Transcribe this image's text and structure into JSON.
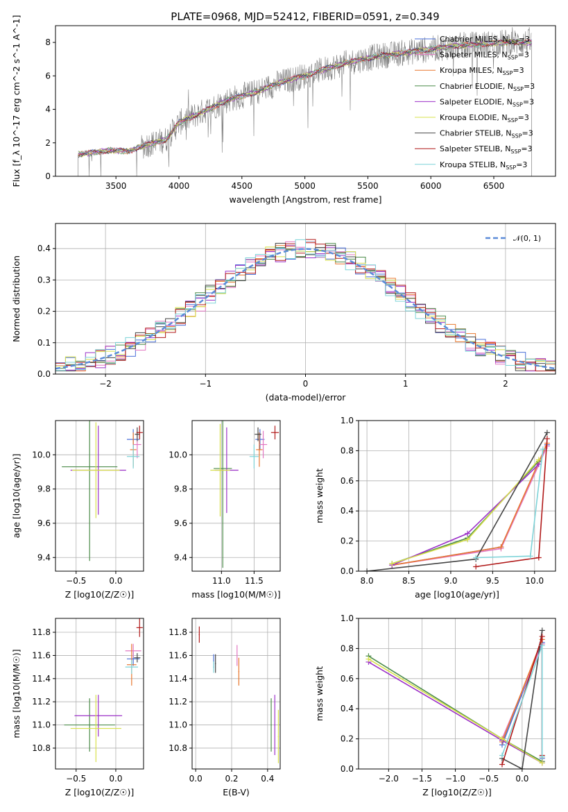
{
  "figure_title": "PLATE=0968, MJD=52412, FIBERID=0591, z=0.349",
  "models": [
    {
      "name": "Chabrier MILES, N",
      "sub": "SSP",
      "suffix": "=3",
      "color": "#4a6fd8"
    },
    {
      "name": "Salpeter MILES, N",
      "sub": "SSP",
      "suffix": "=3",
      "color": "#e377c2"
    },
    {
      "name": "Kroupa MILES, N",
      "sub": "SSP",
      "suffix": "=3",
      "color": "#e8772e"
    },
    {
      "name": "Chabrier ELODIE, N",
      "sub": "SSP",
      "suffix": "=3",
      "color": "#4c8c4a"
    },
    {
      "name": "Salpeter ELODIE, N",
      "sub": "SSP",
      "suffix": "=3",
      "color": "#9b30c8"
    },
    {
      "name": "Kroupa ELODIE, N",
      "sub": "SSP",
      "suffix": "=3",
      "color": "#d7e04a"
    },
    {
      "name": "Chabrier STELIB, N",
      "sub": "SSP",
      "suffix": "=3",
      "color": "#444444"
    },
    {
      "name": "Salpeter STELIB, N",
      "sub": "SSP",
      "suffix": "=3",
      "color": "#b01818"
    },
    {
      "name": "Kroupa STELIB, N",
      "sub": "SSP",
      "suffix": "=3",
      "color": "#7dd3d8"
    }
  ],
  "chart_data": [
    {
      "id": "spectrum",
      "type": "line",
      "xlabel": "wavelength [Angstrom, rest frame]",
      "ylabel": "Flux [f_λ 10^-17 erg cm^-2 s^-1 A^-1]",
      "xlim": [
        3020,
        6990
      ],
      "ylim": [
        0,
        9
      ],
      "xticks": [
        3500,
        4000,
        4500,
        5000,
        5500,
        6000,
        6500
      ],
      "yticks": [
        0,
        2,
        4,
        6,
        8
      ],
      "data_color": "#808080",
      "data_range": [
        3200,
        6800
      ],
      "continuum": [
        [
          3200,
          1.3
        ],
        [
          3450,
          1.55
        ],
        [
          3600,
          1.5
        ],
        [
          3750,
          1.9
        ],
        [
          3900,
          2.2
        ],
        [
          4000,
          3.2
        ],
        [
          4200,
          3.9
        ],
        [
          4400,
          4.6
        ],
        [
          4600,
          5.0
        ],
        [
          4800,
          5.6
        ],
        [
          5000,
          6.0
        ],
        [
          5200,
          6.5
        ],
        [
          5400,
          6.9
        ],
        [
          5600,
          7.2
        ],
        [
          5800,
          7.4
        ],
        [
          6000,
          7.6
        ],
        [
          6200,
          7.8
        ],
        [
          6400,
          7.9
        ],
        [
          6600,
          8.0
        ],
        [
          6800,
          8.0
        ]
      ]
    },
    {
      "id": "residuals",
      "type": "line",
      "xlabel": "(data-model)/error",
      "ylabel": "Normed distribution",
      "xlim": [
        -2.5,
        2.5
      ],
      "ylim": [
        0,
        0.48
      ],
      "xticks": [
        -2,
        -1,
        0,
        1,
        2
      ],
      "yticks": [
        0.0,
        0.1,
        0.2,
        0.3,
        0.4
      ],
      "legend": "𝒩(0, 1)",
      "gaussian_color": "#5b8bd8",
      "bin_width": 0.1
    },
    {
      "id": "age_vs_Z",
      "type": "scatter",
      "xlabel": "Z [log10(Z/Z☉)]",
      "ylabel": "age [log10(age/yr)]",
      "xlim": [
        -0.76,
        0.35
      ],
      "ylim": [
        9.32,
        10.2
      ],
      "xticks": [
        -0.5,
        0.0
      ],
      "yticks": [
        9.4,
        9.6,
        9.8,
        10.0
      ],
      "points": [
        {
          "m": 0,
          "x": 0.22,
          "xerr": 0.08,
          "y": 10.09,
          "yerr": 0.06
        },
        {
          "m": 1,
          "x": 0.27,
          "xerr": 0.05,
          "y": 10.06,
          "yerr": 0.08
        },
        {
          "m": 2,
          "x": 0.22,
          "xerr": 0.04,
          "y": 10.03,
          "yerr": 0.1
        },
        {
          "m": 3,
          "x": -0.33,
          "xerr": 0.35,
          "y": 9.93,
          "yerr": 0.55
        },
        {
          "m": 4,
          "x": -0.22,
          "xerr": 0.35,
          "y": 9.91,
          "yerr": 0.26
        },
        {
          "m": 5,
          "x": -0.25,
          "xerr": 0.3,
          "y": 9.91,
          "yerr": 0.28
        },
        {
          "m": 6,
          "x": 0.27,
          "xerr": 0.03,
          "y": 10.12,
          "yerr": 0.04
        },
        {
          "m": 7,
          "x": 0.3,
          "xerr": 0.04,
          "y": 10.13,
          "yerr": 0.04
        },
        {
          "m": 8,
          "x": 0.22,
          "xerr": 0.08,
          "y": 9.99,
          "yerr": 0.07
        }
      ]
    },
    {
      "id": "age_vs_mass",
      "type": "scatter",
      "xlabel": "mass [log10(M/M☉)]",
      "ylabel": "",
      "xlim": [
        10.55,
        11.9
      ],
      "ylim": [
        9.32,
        10.2
      ],
      "xticks": [
        11.0,
        11.5
      ],
      "yticks": [
        9.4,
        9.6,
        9.8,
        10.0
      ],
      "points": [
        {
          "m": 0,
          "x": 11.59,
          "xerr": 0.07,
          "y": 10.09,
          "yerr": 0.06
        },
        {
          "m": 1,
          "x": 11.64,
          "xerr": 0.06,
          "y": 10.06,
          "yerr": 0.08
        },
        {
          "m": 2,
          "x": 11.58,
          "xerr": 0.05,
          "y": 10.03,
          "yerr": 0.1
        },
        {
          "m": 3,
          "x": 11.02,
          "xerr": 0.14,
          "y": 9.92,
          "yerr": 0.58
        },
        {
          "m": 4,
          "x": 11.08,
          "xerr": 0.18,
          "y": 9.91,
          "yerr": 0.25
        },
        {
          "m": 5,
          "x": 10.98,
          "xerr": 0.15,
          "y": 9.91,
          "yerr": 0.27
        },
        {
          "m": 6,
          "x": 11.56,
          "xerr": 0.05,
          "y": 10.12,
          "yerr": 0.04
        },
        {
          "m": 7,
          "x": 11.82,
          "xerr": 0.06,
          "y": 10.13,
          "yerr": 0.04
        },
        {
          "m": 8,
          "x": 11.5,
          "xerr": 0.07,
          "y": 9.99,
          "yerr": 0.07
        }
      ]
    },
    {
      "id": "weight_vs_age",
      "type": "line",
      "xlabel": "age [log10(age/yr)]",
      "ylabel": "mass weight",
      "xlim": [
        7.9,
        10.25
      ],
      "ylim": [
        0,
        1
      ],
      "xticks": [
        8.0,
        8.5,
        9.0,
        9.5,
        10.0
      ],
      "yticks": [
        0.0,
        0.2,
        0.4,
        0.6,
        0.8,
        1.0
      ],
      "series": [
        {
          "m": 0,
          "x": [
            8.3,
            9.6,
            10.15
          ],
          "y": [
            0.04,
            0.16,
            0.84
          ]
        },
        {
          "m": 1,
          "x": [
            8.3,
            9.6,
            10.15
          ],
          "y": [
            0.04,
            0.15,
            0.83
          ]
        },
        {
          "m": 2,
          "x": [
            8.3,
            9.6,
            10.15
          ],
          "y": [
            0.04,
            0.16,
            0.85
          ]
        },
        {
          "m": 3,
          "x": [
            8.3,
            9.2,
            10.05
          ],
          "y": [
            0.05,
            0.22,
            0.73
          ]
        },
        {
          "m": 4,
          "x": [
            8.3,
            9.2,
            10.05
          ],
          "y": [
            0.04,
            0.25,
            0.71
          ]
        },
        {
          "m": 5,
          "x": [
            8.3,
            9.2,
            10.05
          ],
          "y": [
            0.05,
            0.21,
            0.74
          ]
        },
        {
          "m": 6,
          "x": [
            8.0,
            9.3,
            10.15
          ],
          "y": [
            0.0,
            0.08,
            0.92
          ]
        },
        {
          "m": 7,
          "x": [
            9.3,
            10.05,
            10.15
          ],
          "y": [
            0.03,
            0.09,
            0.88
          ]
        },
        {
          "m": 8,
          "x": [
            9.3,
            9.95,
            10.1
          ],
          "y": [
            0.09,
            0.1,
            0.81
          ]
        }
      ]
    },
    {
      "id": "mass_vs_Z",
      "type": "scatter",
      "xlabel": "Z [log10(Z/Z☉)]",
      "ylabel": "mass [log10(M/M☉)]",
      "xlim": [
        -0.76,
        0.35
      ],
      "ylim": [
        10.62,
        11.92
      ],
      "xticks": [
        -0.5,
        0.0
      ],
      "yticks": [
        10.8,
        11.0,
        11.2,
        11.4,
        11.6,
        11.8
      ],
      "points": [
        {
          "m": 0,
          "x": 0.22,
          "xerr": 0.08,
          "y": 11.57,
          "yerr": 0.06
        },
        {
          "m": 1,
          "x": 0.22,
          "xerr": 0.1,
          "y": 11.64,
          "yerr": 0.06
        },
        {
          "m": 2,
          "x": 0.2,
          "xerr": 0.06,
          "y": 11.52,
          "yerr": 0.18
        },
        {
          "m": 3,
          "x": -0.33,
          "xerr": 0.32,
          "y": 11.0,
          "yerr": 0.23
        },
        {
          "m": 4,
          "x": -0.22,
          "xerr": 0.3,
          "y": 11.08,
          "yerr": 0.18
        },
        {
          "m": 5,
          "x": -0.25,
          "xerr": 0.32,
          "y": 10.97,
          "yerr": 0.29
        },
        {
          "m": 6,
          "x": 0.27,
          "xerr": 0.04,
          "y": 11.58,
          "yerr": 0.04
        },
        {
          "m": 7,
          "x": 0.3,
          "xerr": 0.04,
          "y": 11.84,
          "yerr": 0.08
        },
        {
          "m": 8,
          "x": 0.2,
          "xerr": 0.08,
          "y": 11.5,
          "yerr": 0.06
        }
      ]
    },
    {
      "id": "mass_vs_EBV",
      "type": "scatter",
      "xlabel": "E(B-V)",
      "ylabel": "",
      "xlim": [
        -0.02,
        0.47
      ],
      "ylim": [
        10.62,
        11.92
      ],
      "xticks": [
        0.0,
        0.2,
        0.4
      ],
      "yticks": [
        10.8,
        11.0,
        11.2,
        11.4,
        11.6,
        11.8
      ],
      "points": [
        {
          "m": 0,
          "x": 0.1,
          "y": 11.55,
          "yerr": 0.06
        },
        {
          "m": 1,
          "x": 0.23,
          "y": 11.6,
          "yerr": 0.09
        },
        {
          "m": 2,
          "x": 0.24,
          "y": 11.46,
          "yerr": 0.12
        },
        {
          "m": 3,
          "x": 0.42,
          "y": 11.0,
          "yerr": 0.23
        },
        {
          "m": 4,
          "x": 0.44,
          "y": 11.0,
          "yerr": 0.26
        },
        {
          "m": 5,
          "x": 0.46,
          "y": 10.9,
          "yerr": 0.23
        },
        {
          "m": 6,
          "x": 0.11,
          "y": 11.53,
          "yerr": 0.08
        },
        {
          "m": 7,
          "x": 0.02,
          "y": 11.78,
          "yerr": 0.07
        },
        {
          "m": 8,
          "x": 0.1,
          "y": 11.5,
          "yerr": 0.05
        }
      ]
    },
    {
      "id": "weight_vs_Z",
      "type": "line",
      "xlabel": "Z [log10(Z/Z☉)]",
      "ylabel": "mass weight",
      "xlim": [
        -2.45,
        0.5
      ],
      "ylim": [
        0,
        1
      ],
      "xticks": [
        -2.0,
        -1.5,
        -1.0,
        -0.5,
        0.0
      ],
      "yticks": [
        0.0,
        0.2,
        0.4,
        0.6,
        0.8,
        1.0
      ],
      "series": [
        {
          "m": 0,
          "x": [
            -0.3,
            0.3,
            0.3
          ],
          "y": [
            0.16,
            0.84,
            0.07
          ]
        },
        {
          "m": 1,
          "x": [
            -0.3,
            0.3,
            0.3
          ],
          "y": [
            0.2,
            0.83,
            0.05
          ]
        },
        {
          "m": 2,
          "x": [
            -0.3,
            0.3,
            0.3
          ],
          "y": [
            0.18,
            0.86,
            0.08
          ]
        },
        {
          "m": 3,
          "x": [
            -2.3,
            -0.3,
            0.3
          ],
          "y": [
            0.75,
            0.2,
            0.05
          ]
        },
        {
          "m": 4,
          "x": [
            -2.3,
            -0.3,
            0.3
          ],
          "y": [
            0.71,
            0.19,
            0.04
          ]
        },
        {
          "m": 5,
          "x": [
            -2.3,
            -0.3,
            0.3
          ],
          "y": [
            0.73,
            0.2,
            0.04
          ]
        },
        {
          "m": 6,
          "x": [
            -0.3,
            0.0,
            0.3
          ],
          "y": [
            0.07,
            0.0,
            0.92
          ]
        },
        {
          "m": 7,
          "x": [
            -0.3,
            0.3,
            0.3
          ],
          "y": [
            0.03,
            0.88,
            0.09
          ]
        },
        {
          "m": 8,
          "x": [
            -0.3,
            0.3,
            0.3
          ],
          "y": [
            0.09,
            0.82,
            0.08
          ]
        }
      ]
    }
  ]
}
